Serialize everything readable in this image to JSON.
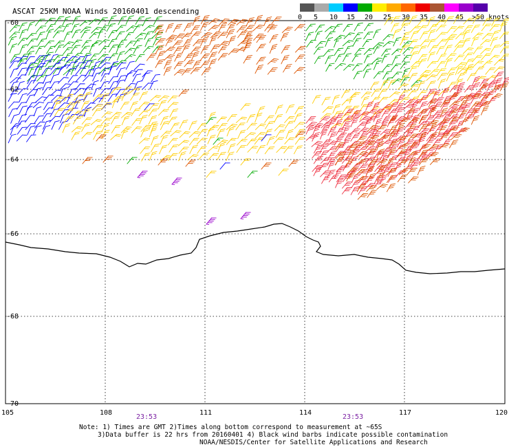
{
  "title": "ASCAT 25KM NOAA Winds 20160401 descending",
  "legend": {
    "tick_labels": [
      "0",
      "5",
      "10",
      "15",
      "20",
      "25",
      "30",
      "35",
      "40",
      "45",
      ">50 knots"
    ],
    "colors": [
      "#555555",
      "#aaaaaa",
      "#00ccff",
      "#0000ff",
      "#00aa00",
      "#ffee00",
      "#ffaa00",
      "#ff6600",
      "#ee0000",
      "#aa5533",
      "#ff00ff",
      "#9900cc",
      "#5500aa"
    ]
  },
  "map": {
    "lon_range": [
      105,
      120
    ],
    "lat_range": [
      -60,
      -70
    ],
    "lat_labels": [
      "-60",
      "-62",
      "-64",
      "-66",
      "-68",
      "-70"
    ],
    "lon_labels": [
      "105",
      "108",
      "111",
      "114",
      "117",
      "120"
    ],
    "time_labels": [
      "23:53",
      "23:53"
    ],
    "coastline": "Antarctic coastline (black line)",
    "wind_regions": [
      {
        "area": "northwest",
        "speed_knots": 17,
        "color": "#00aa00"
      },
      {
        "area": "far west",
        "speed_knots": 12,
        "color": "#0000ff"
      },
      {
        "area": "north-central",
        "speed_knots": 30,
        "color": "#dd5500"
      },
      {
        "area": "central band",
        "speed_knots": 22,
        "color": "#ffcc00"
      },
      {
        "area": "northeast",
        "speed_knots": 22,
        "color": "#ffdd00"
      },
      {
        "area": "southeast diagonal",
        "speed_knots": 33,
        "color": "#ee3344"
      },
      {
        "area": "scattered south",
        "speed_knots": 45,
        "color": "#9900cc"
      }
    ]
  },
  "notes": [
    "Note: 1) Times are GMT 2)Times along bottom correspond to measurement at ~65S",
    "3)Data buffer is 22 hrs from 20160401 4) Black wind barbs indicate possible contamination",
    "NOAA/NESDIS/Center for Satellite Applications and Research"
  ]
}
